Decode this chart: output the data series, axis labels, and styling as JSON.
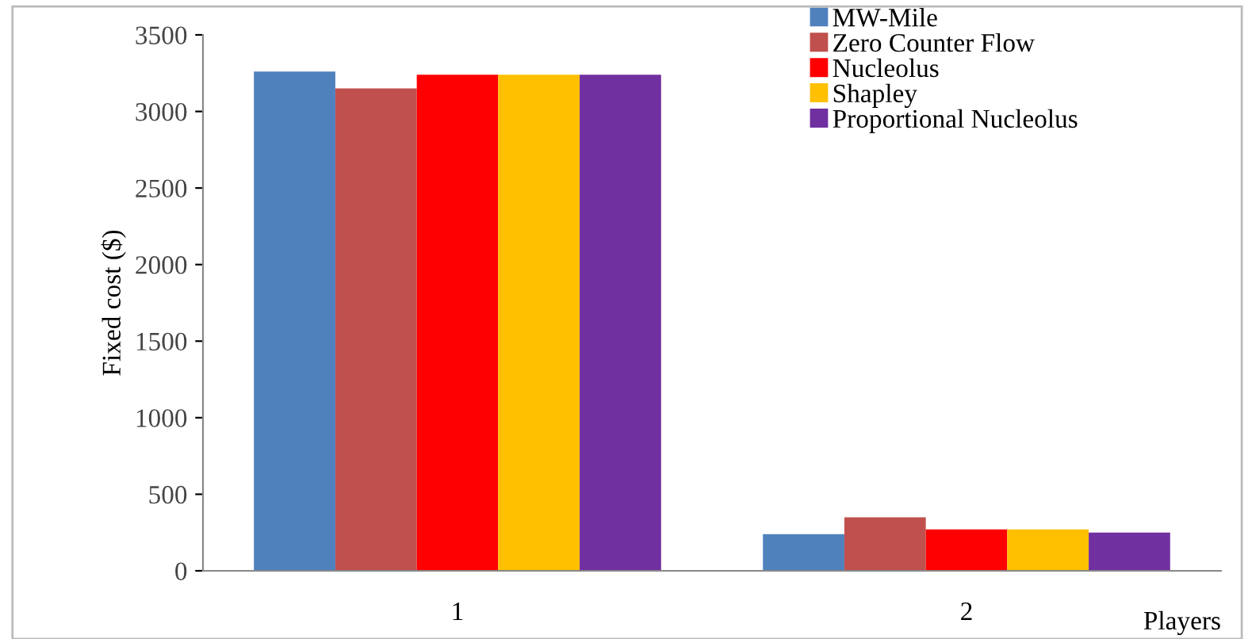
{
  "chart_data": {
    "type": "bar",
    "xlabel": "Players",
    "ylabel": "Fixed cost ($)",
    "categories": [
      "1",
      "2"
    ],
    "series": [
      {
        "name": "MW-Mile",
        "color": "#4f81bd",
        "values": [
          3260,
          240
        ]
      },
      {
        "name": "Zero Counter Flow",
        "color": "#c0504d",
        "values": [
          3150,
          350
        ]
      },
      {
        "name": "Nucleolus",
        "color": "#ff0000",
        "values": [
          3240,
          270
        ]
      },
      {
        "name": "Shapley",
        "color": "#ffc000",
        "values": [
          3240,
          270
        ]
      },
      {
        "name": "Proportional Nucleolus",
        "color": "#7030a0",
        "values": [
          3240,
          250
        ]
      }
    ],
    "ylim": [
      0,
      3500
    ],
    "yticks": [
      0,
      500,
      1000,
      1500,
      2000,
      2500,
      3000,
      3500
    ],
    "grid": false,
    "legend": "top right"
  }
}
